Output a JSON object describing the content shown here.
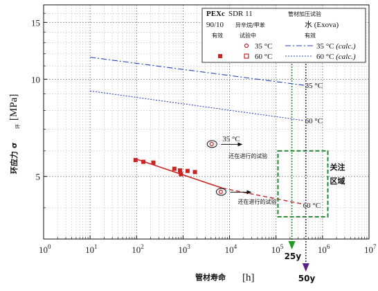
{
  "chart_data": {
    "type": "scatter",
    "xscale": "log",
    "yscale": "log",
    "xlim": [
      1,
      10000000
    ],
    "ylim": [
      3.2,
      17
    ],
    "grid": true,
    "xticks": [
      {
        "v": 1,
        "b": "10",
        "e": "0"
      },
      {
        "v": 10,
        "b": "10",
        "e": "1"
      },
      {
        "v": 100,
        "b": "10",
        "e": "2"
      },
      {
        "v": 1000,
        "b": "10",
        "e": "3"
      },
      {
        "v": 10000,
        "b": "10",
        "e": "4"
      },
      {
        "v": 100000,
        "b": "10",
        "e": "5"
      },
      {
        "v": 1000000,
        "b": "10",
        "e": "6"
      },
      {
        "v": 10000000,
        "b": "10",
        "e": "7"
      }
    ],
    "yticks": [
      {
        "v": 5,
        "label": "5"
      },
      {
        "v": 10,
        "label": "10"
      },
      {
        "v": 15,
        "label": "15"
      }
    ],
    "xlabel": {
      "cn": "管材寿命",
      "unit": "[h]"
    },
    "ylabel": {
      "cn": "环应力 σ",
      "sub": "环",
      "unit": "[MPa]"
    },
    "legend": {
      "col1": [
        "PEXc",
        "SDR 11",
        "90/10",
        "异辛烷/甲苯",
        "有效",
        "试验中"
      ],
      "col2": [
        "管材加压试验",
        "水 (Exova)",
        "有效"
      ],
      "rows": [
        {
          "t": "35 °C",
          "c": "(calc.)"
        },
        {
          "t": "60 °C",
          "c": "(calc.)"
        }
      ]
    },
    "series": [
      {
        "name": "60 °C",
        "color": "#cc2222",
        "points": [
          [
            95,
            5.62
          ],
          [
            140,
            5.55
          ],
          [
            230,
            5.52
          ],
          [
            650,
            5.28
          ],
          [
            860,
            5.22
          ],
          [
            900,
            5.08
          ],
          [
            1250,
            5.2
          ],
          [
            1800,
            5.16
          ]
        ],
        "fit_line": [
          [
            95,
            5.67
          ],
          [
            7000,
            4.6
          ]
        ],
        "extrapolation": [
          [
            7000,
            4.6
          ],
          [
            400000,
            4.1
          ]
        ]
      },
      {
        "name": "35 °C (calc.)",
        "color": "#2244bb",
        "line": [
          [
            10,
            11.7
          ],
          [
            400000,
            9.58
          ]
        ]
      },
      {
        "name": "60 °C (calc.)",
        "color": "#3344cc",
        "line": [
          [
            10,
            9.2
          ],
          [
            400000,
            7.45
          ]
        ]
      }
    ],
    "running_tests": [
      {
        "label": "35 °C",
        "x": 4200,
        "y": 6.3,
        "note": "还在进行的试验"
      },
      {
        "label": "",
        "x": 6600,
        "y": 4.48,
        "note": "还在进行的试验"
      }
    ],
    "line_labels": [
      {
        "text": "35 °C",
        "x": 450000,
        "y": 9.58
      },
      {
        "text": "60 °C",
        "x": 450000,
        "y": 7.45
      },
      {
        "text": "60 °C",
        "x": 380000,
        "y": 4.1
      }
    ],
    "focus": {
      "label": [
        "关注",
        "区域"
      ],
      "x1": 110000,
      "x2": 1300000,
      "y1": 3.75,
      "y2": 6.0
    },
    "markers": [
      {
        "label": "25y",
        "x": 219000,
        "color": "#229922"
      },
      {
        "label": "50y",
        "x": 438000,
        "color": "#552288"
      }
    ]
  }
}
